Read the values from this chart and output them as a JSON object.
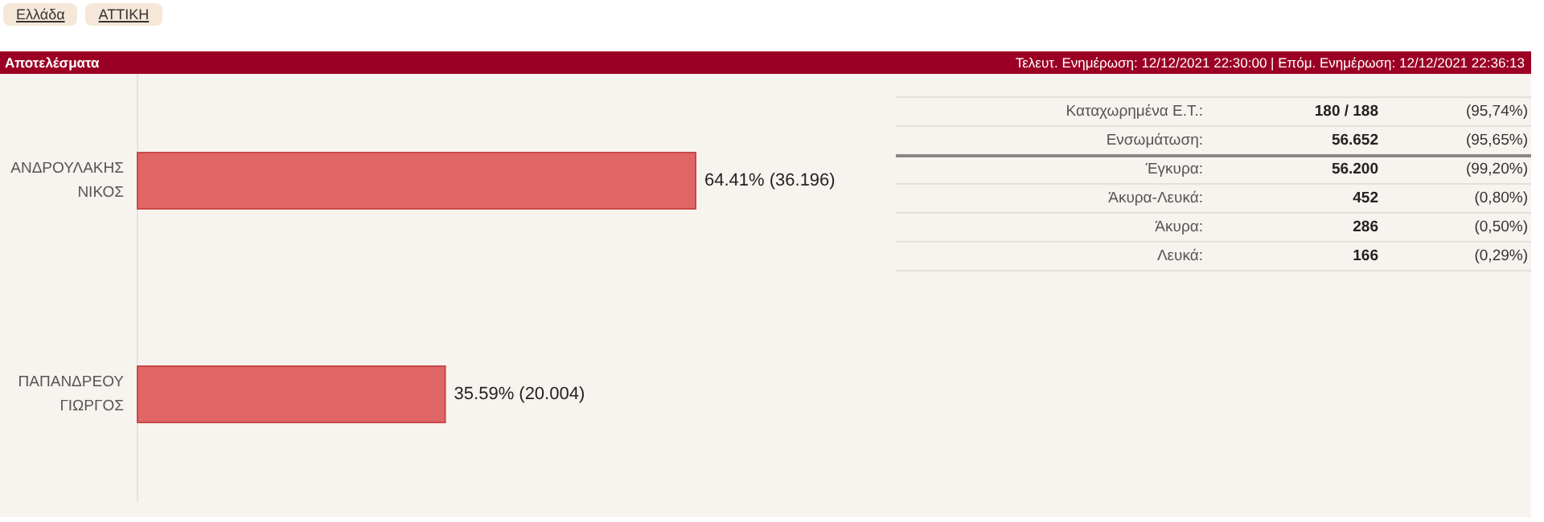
{
  "chart_data": [
    {
      "type": "other",
      "title": "Αποτελέσματα",
      "subtitle": "Τελευτ. Ενημέρωση: 12/12/2021 22:30:00  |  Επόμ. Ενημέρωση: 12/12/2021 22:36:13",
      "annotations": [
        "Ελλάδα",
        "ΑΤΤΙΚΗ"
      ]
    },
    {
      "type": "bar",
      "orientation": "horizontal",
      "categories": [
        "ΑΝΔΡΟΥΛΑΚΗΣ ΝΙΚΟΣ",
        "ΠΑΠΑΝΔΡΕΟΥ ΓΙΩΡΓΟΣ"
      ],
      "values": [
        64.41,
        35.59
      ],
      "value_labels": [
        "64.41% (36.196)",
        "35.59% (20.004)"
      ],
      "color": "#e06666"
    },
    {
      "type": "other",
      "annotations": [
        "Καταχωρημένα Ε.Τ.:",
        "180 / 188",
        "(95,74%)",
        "Ενσωμάτωση:",
        "56.652",
        "(95,65%)",
        "Έγκυρα:",
        "56.200",
        "(99,20%)",
        "Άκυρα-Λευκά:",
        "452",
        "(0,80%)",
        "Άκυρα:",
        "286",
        "(0,50%)",
        "Λευκά:",
        "166",
        "(0,29%)"
      ]
    }
  ]
}
